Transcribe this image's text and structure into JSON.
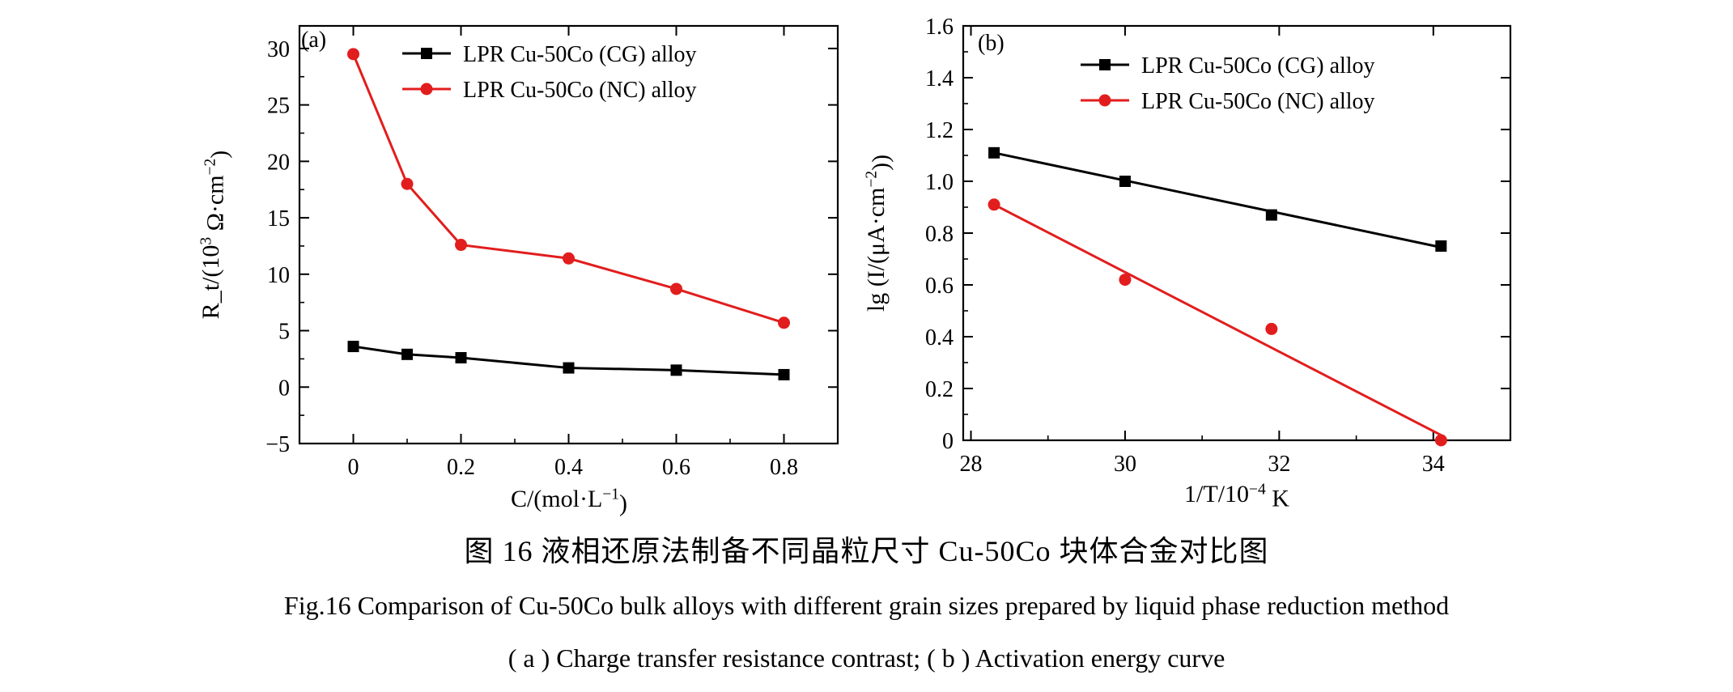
{
  "caption": {
    "cn": "图 16   液相还原法制备不同晶粒尺寸 Cu-50Co 块体合金对比图",
    "en": "Fig.16   Comparison of Cu-50Co bulk alloys with different grain sizes prepared by liquid phase reduction method",
    "sub": "( a ) Charge transfer resistance contrast; ( b ) Activation energy curve"
  },
  "chart_data": [
    {
      "panel_label": "(a)",
      "type": "line",
      "xlabel": "C/(mol·L⁻¹)",
      "ylabel": "R_t/(10³ Ω·cm⁻²)",
      "xlim": [
        -0.1,
        0.9
      ],
      "ylim": [
        -5,
        32
      ],
      "xticks": [
        0,
        0.2,
        0.4,
        0.6,
        0.8
      ],
      "xtick_labels": [
        "0",
        "0.2",
        "0.4",
        "0.6",
        "0.8"
      ],
      "yticks": [
        -5,
        0,
        5,
        10,
        15,
        20,
        25,
        30
      ],
      "ytick_labels": [
        "−5",
        "0",
        "5",
        "10",
        "15",
        "20",
        "25",
        "30"
      ],
      "legend_position": "top-center",
      "grid": false,
      "series": [
        {
          "name": "LPR Cu-50Co (CG) alloy",
          "color": "#000000",
          "marker": "square",
          "x": [
            0,
            0.1,
            0.2,
            0.4,
            0.6,
            0.8
          ],
          "y": [
            3.6,
            2.9,
            2.6,
            1.7,
            1.5,
            1.1
          ]
        },
        {
          "name": "LPR Cu-50Co (NC) alloy",
          "color": "#e21d1d",
          "marker": "circle",
          "x": [
            0,
            0.1,
            0.2,
            0.4,
            0.6,
            0.8
          ],
          "y": [
            29.5,
            18.0,
            12.6,
            11.4,
            8.7,
            5.7
          ]
        }
      ]
    },
    {
      "panel_label": "(b)",
      "type": "scatter",
      "xlabel": "1/T/10⁻⁴ K",
      "ylabel": "lg (I/(μA·cm⁻²))",
      "xlim": [
        27.9,
        35.0
      ],
      "ylim": [
        0,
        1.6
      ],
      "xticks": [
        28,
        30,
        32,
        34
      ],
      "xtick_labels": [
        "28",
        "30",
        "32",
        "34"
      ],
      "yticks": [
        0,
        0.2,
        0.4,
        0.6,
        0.8,
        1.0,
        1.2,
        1.4,
        1.6
      ],
      "ytick_labels": [
        "0",
        "0.2",
        "0.4",
        "0.6",
        "0.8",
        "1.0",
        "1.2",
        "1.4",
        "1.6"
      ],
      "legend_position": "top-center",
      "grid": false,
      "series": [
        {
          "name": "LPR Cu-50Co (CG) alloy",
          "color": "#000000",
          "marker": "square",
          "x": [
            28.3,
            30.0,
            31.9,
            34.1
          ],
          "y": [
            1.11,
            1.0,
            0.87,
            0.75
          ],
          "fit": {
            "x": [
              28.3,
              34.1
            ],
            "y": [
              1.11,
              0.745
            ]
          }
        },
        {
          "name": "LPR Cu-50Co (NC) alloy",
          "color": "#e21d1d",
          "marker": "circle",
          "x": [
            28.3,
            30.0,
            31.9,
            34.1
          ],
          "y": [
            0.91,
            0.62,
            0.43,
            0.0
          ],
          "fit": {
            "x": [
              28.3,
              34.1
            ],
            "y": [
              0.91,
              0.02
            ]
          }
        }
      ]
    }
  ]
}
